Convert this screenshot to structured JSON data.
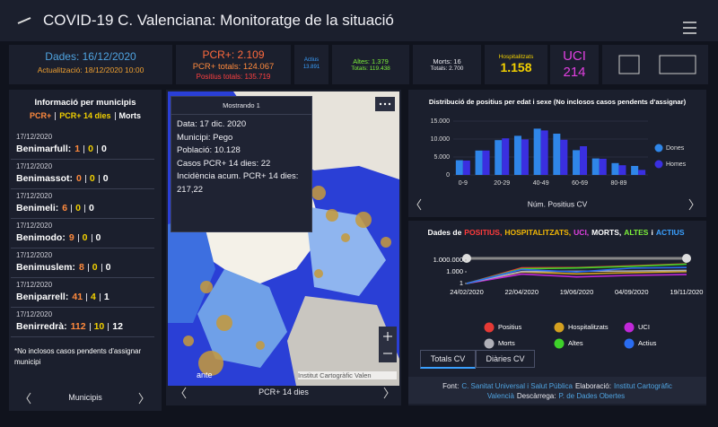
{
  "header": {
    "title": "COVID-19 C. Valenciana: Monitoratge de la situació"
  },
  "stats": {
    "date": "Dades: 16/12/2020",
    "updated": "Actualització: 18/12/2020 10:00",
    "pcr": "PCR+: 2.109",
    "pcr_total": "PCR+ totals: 124.067",
    "positive_total": "Positius totals: 135.719",
    "active_label": "Actius",
    "active_value": "13.891",
    "discharged": "Altes: 1.379",
    "discharged_total": "Totals: 119.438",
    "deaths": "Morts: 16",
    "deaths_total": "Totals: 2.700",
    "hospital_label": "Hospitalitzats",
    "hospital_value": "1.158",
    "icu_label": "UCI",
    "icu_value": "214"
  },
  "municipalities": {
    "title": "Informació per municipis",
    "legend": [
      "PCR+",
      "PCR+ 14 dies",
      "Morts"
    ],
    "items": [
      {
        "date": "17/12/2020",
        "name": "Benimarfull:",
        "pcr": 1,
        "pcr14": 0,
        "deaths": 0
      },
      {
        "date": "17/12/2020",
        "name": "Benimassot:",
        "pcr": 0,
        "pcr14": 0,
        "deaths": 0
      },
      {
        "date": "17/12/2020",
        "name": "Benimeli:",
        "pcr": 6,
        "pcr14": 0,
        "deaths": 0
      },
      {
        "date": "17/12/2020",
        "name": "Benimodo:",
        "pcr": 9,
        "pcr14": 0,
        "deaths": 0
      },
      {
        "date": "17/12/2020",
        "name": "Benimuslem:",
        "pcr": 8,
        "pcr14": 0,
        "deaths": 0
      },
      {
        "date": "17/12/2020",
        "name": "Beniparrell:",
        "pcr": 41,
        "pcr14": 4,
        "deaths": 1
      },
      {
        "date": "17/12/2020",
        "name": "Benirredrà:",
        "pcr": 112,
        "pcr14": 10,
        "deaths": 12
      }
    ],
    "note": "*No inclosos casos pendents d'assignar municipi",
    "footer": "Municipis"
  },
  "map": {
    "popup": {
      "title": "Mostrando 1",
      "lines": [
        "Data: 17 dic. 2020",
        "Municipi: Pego",
        "Població: 10.128",
        "Casos PCR+ 14 dies: 22",
        "Incidència acum. PCR+ 14 dies: 217,22"
      ]
    },
    "attribution": "Institut Cartogràfic Valen",
    "place": "ante",
    "footer": "PCR+ 14 dies"
  },
  "age_chart": {
    "type": "bar",
    "title": "Distribució de positius per edat i sexe (No inclosos casos pendents d'assignar)",
    "categories": [
      "0-9",
      null,
      "20-29",
      null,
      "40-49",
      null,
      "60-69",
      null,
      "80-89",
      null
    ],
    "series": [
      {
        "name": "Dones",
        "color": "#2f86e8",
        "values": [
          4100,
          6800,
          9700,
          10900,
          12900,
          11500,
          6900,
          4600,
          3300,
          2500
        ]
      },
      {
        "name": "Homes",
        "color": "#3a2fe0",
        "values": [
          4000,
          6800,
          10200,
          9900,
          12400,
          9800,
          8000,
          4500,
          2700,
          1400
        ]
      }
    ],
    "ylim": [
      0,
      15000
    ],
    "yticks": [
      0,
      {
        "value": 5000,
        "label": "5.000"
      },
      {
        "value": 10000,
        "label": "10.000"
      },
      {
        "value": 15000,
        "label": "15.000"
      }
    ],
    "footer": "Núm. Positius CV"
  },
  "timeline_chart": {
    "type": "line",
    "title": [
      {
        "text": "Dades de",
        "color": "#ffffff"
      },
      {
        "text": "POSITIUS,",
        "color": "#ff3b3b"
      },
      {
        "text": "HOSPITALITZATS,",
        "color": "#f2b705"
      },
      {
        "text": "UCI,",
        "color": "#e040e0"
      },
      {
        "text": "MORTS,",
        "color": "#ffffff"
      },
      {
        "text": "ALTES",
        "color": "#7cf03a"
      },
      {
        "text": "i",
        "color": "#ffffff"
      },
      {
        "text": "ACTIUS",
        "color": "#3aa0ff"
      }
    ],
    "categories": [
      "24/02/2020",
      "22/04/2020",
      "19/06/2020",
      "04/09/2020",
      "19/11/2020"
    ],
    "log_scale": true,
    "ylim": [
      1,
      1000000
    ],
    "yticks": [
      1,
      {
        "value": 1000,
        "label": "1.000"
      },
      {
        "value": 1000000,
        "label": "1.000.000"
      }
    ],
    "series": [
      {
        "name": "Positius",
        "color": "#e53935",
        "values": [
          1,
          11000,
          12000,
          35000,
          110000
        ]
      },
      {
        "name": "Hospitalitzats",
        "color": "#d4a020",
        "values": [
          1,
          900,
          300,
          600,
          1100
        ]
      },
      {
        "name": "UCI",
        "color": "#c028d8",
        "values": [
          1,
          250,
          50,
          120,
          200
        ]
      },
      {
        "name": "Morts",
        "color": "#b0b0b8",
        "values": [
          1,
          1200,
          1400,
          1600,
          2300
        ]
      },
      {
        "name": "Altes",
        "color": "#3ed12a",
        "values": [
          1,
          6000,
          10000,
          25000,
          95000
        ]
      },
      {
        "name": "Actius",
        "color": "#2a6cf0",
        "values": [
          1,
          4000,
          900,
          9000,
          13000
        ]
      }
    ]
  },
  "tabs": [
    "Totals CV",
    "Diàries CV"
  ],
  "source": [
    {
      "text": "Font:",
      "color": "#e8e8ee"
    },
    {
      "text": "C. Sanitat Universal i Salut Pública",
      "color": "#4fa3e0"
    },
    {
      "text": "Elaboració:",
      "color": "#e8e8ee"
    },
    {
      "text": "Institut Cartogràfic Valencià",
      "color": "#4fa3e0"
    },
    {
      "text": "Descàrrega:",
      "color": "#e8e8ee"
    },
    {
      "text": "P. de Dades Obertes",
      "color": "#4fa3e0"
    }
  ]
}
